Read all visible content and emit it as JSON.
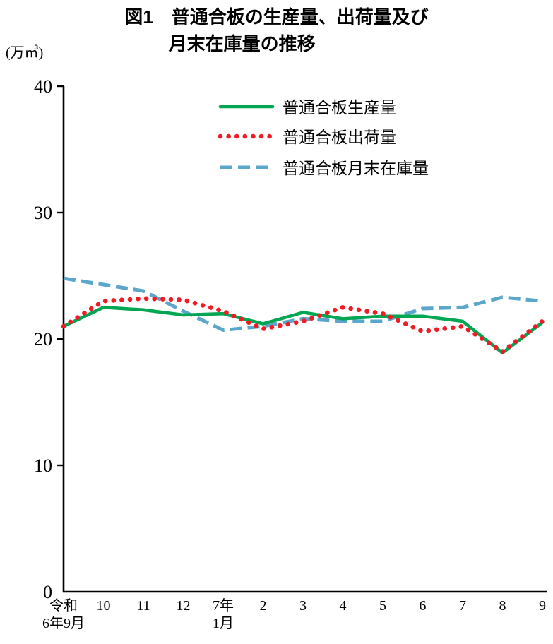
{
  "title": {
    "line1": "図1　普通合板の生産量、出荷量及び",
    "line2": "月末在庫量の推移"
  },
  "unit_label": "(万㎥)",
  "chart_data": {
    "type": "line",
    "categories": [
      "令和\n6年9月",
      "10",
      "11",
      "12",
      "7年\n1月",
      "2",
      "3",
      "4",
      "5",
      "6",
      "7",
      "8",
      "9"
    ],
    "series": [
      {
        "name": "普通合板生産量",
        "style": "solid",
        "color": "#00a651",
        "values": [
          21.0,
          22.5,
          22.3,
          21.9,
          22.0,
          21.2,
          22.1,
          21.6,
          21.8,
          21.8,
          21.4,
          18.9,
          21.3
        ]
      },
      {
        "name": "普通合板出荷量",
        "style": "dotted",
        "color": "#ee1c25",
        "values": [
          21.0,
          23.0,
          23.2,
          23.1,
          22.2,
          20.8,
          21.4,
          22.5,
          22.0,
          20.6,
          21.0,
          19.0,
          21.4
        ]
      },
      {
        "name": "普通合板月末在庫量",
        "style": "dashed",
        "color": "#5aa7cb",
        "values": [
          24.8,
          24.3,
          23.8,
          22.2,
          20.7,
          21.0,
          21.6,
          21.4,
          21.4,
          22.4,
          22.5,
          23.3,
          23.0
        ]
      }
    ],
    "ylabel": "(万㎥)",
    "ylim": [
      0,
      40
    ],
    "yticks": [
      0,
      10,
      20,
      30,
      40
    ],
    "grid": false,
    "legend_position": "top-center-inside",
    "axis_color": "#000000"
  }
}
